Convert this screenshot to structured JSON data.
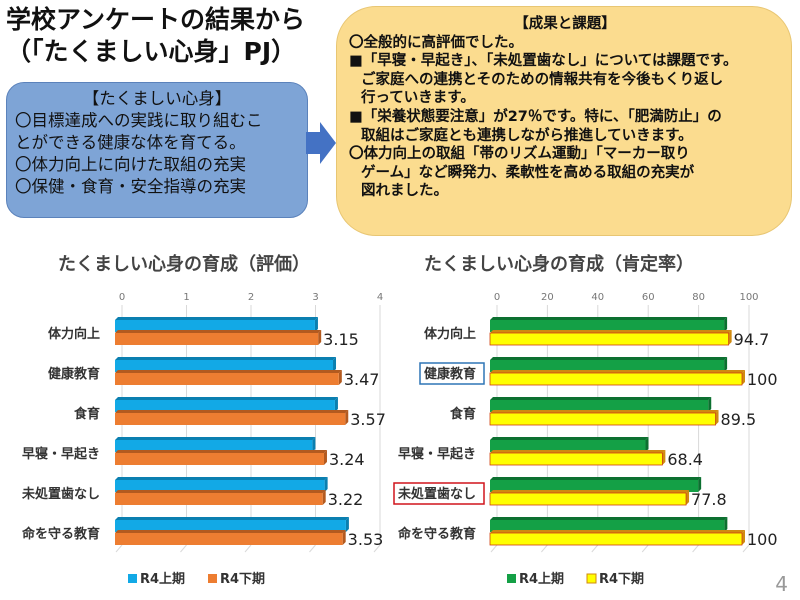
{
  "title_lines": [
    "学校アンケートの結果から",
    "（「たくましい心身」PJ）"
  ],
  "goal_box": {
    "heading": "【たくましい心身】",
    "lines": [
      "〇目標達成への実践に取り組むこ",
      "とができる健康な体を育てる。",
      "〇体力向上に向けた取組の充実",
      "〇保健・食育・安全指導の充実"
    ]
  },
  "results_box": {
    "heading": "【成果と課題】",
    "lines": [
      "〇全般的に高評価でした。",
      "■「早寝・早起き」、「未処置歯なし」については課題です。",
      "ご家庭への連携とそのための情報共有を今後もくり返し",
      "行っていきます。",
      "■「栄養状態要注意」が27％です。特に、「肥満防止」の",
      "取組はご家庭とも連携しながら推進していきます。",
      "〇体力向上の取組「帯のリズム運動」「マーカー取り",
      "ゲーム」など瞬発力、柔軟性を高める取組の充実が",
      "図れました。"
    ]
  },
  "page_number": "4",
  "chart_data": [
    {
      "type": "bar",
      "title": "たくましい心身の育成（評価）",
      "categories": [
        "体力向上",
        "健康教育",
        "食育",
        "早寝・早起き",
        "未処置歯なし",
        "命を守る教育"
      ],
      "xlim": [
        0,
        4
      ],
      "ticks": [
        "0",
        "1",
        "2",
        "3",
        "4"
      ],
      "series": [
        {
          "name": "R4上期",
          "color": "#12a9e6",
          "values": [
            3.1,
            3.38,
            3.41,
            3.06,
            3.25,
            3.58
          ]
        },
        {
          "name": "R4下期",
          "color": "#ed7d31",
          "values": [
            3.15,
            3.47,
            3.57,
            3.24,
            3.22,
            3.53
          ]
        }
      ],
      "data_labels": [
        "3.15",
        "3.47",
        "3.57",
        "3.24",
        "3.22",
        "3.53"
      ],
      "legend": "bottom"
    },
    {
      "type": "bar",
      "title": "たくましい心身の育成（肯定率）",
      "categories": [
        "体力向上",
        "健康教育",
        "食育",
        "早寝・早起き",
        "未処置歯なし",
        "命を守る教育"
      ],
      "xlim": [
        0,
        100
      ],
      "ticks": [
        "0",
        "20",
        "40",
        "60",
        "80",
        "100"
      ],
      "series": [
        {
          "name": "R4上期",
          "color": "#14a046",
          "values": [
            92.9,
            92.9,
            86.6,
            61.7,
            82.6,
            93.0
          ]
        },
        {
          "name": "R4下期",
          "color": "#ffff00",
          "values": [
            94.7,
            100,
            89.5,
            68.4,
            77.8,
            100
          ]
        }
      ],
      "data_labels": [
        "94.7",
        "100",
        "89.5",
        "68.4",
        "77.8",
        "100"
      ],
      "highlights": {
        "1": "#2e75b6",
        "4": "#d0141c"
      },
      "legend": "bottom"
    }
  ]
}
